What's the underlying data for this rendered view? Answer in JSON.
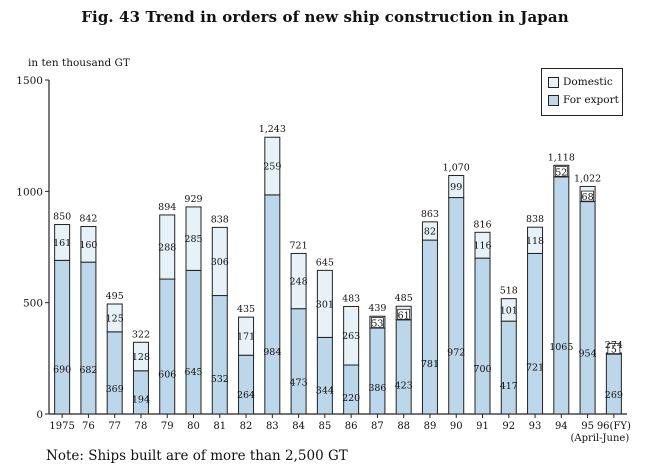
{
  "title": "Fig. 43 Trend in orders of new ship construction in Japan",
  "unit_label": "in ten thousand GT",
  "note": "Note: Ships built are of more than 2,500 GT",
  "colors": {
    "domestic": "#e6f2f8",
    "export": "#bcd6ea",
    "outline": "#222222"
  },
  "chart_data": {
    "type": "bar",
    "stacked": true,
    "categories": [
      "1975",
      "76",
      "77",
      "78",
      "79",
      "80",
      "81",
      "82",
      "83",
      "84",
      "85",
      "86",
      "87",
      "88",
      "89",
      "90",
      "91",
      "92",
      "93",
      "94",
      "95",
      "96(FY)"
    ],
    "category_sublabel": "(April-June)",
    "series": [
      {
        "name": "For export",
        "values": [
          690,
          682,
          369,
          194,
          606,
          645,
          532,
          264,
          984,
          473,
          344,
          220,
          386,
          423,
          781,
          972,
          700,
          417,
          721,
          1065,
          954,
          269
        ]
      },
      {
        "name": "Domestic",
        "values": [
          161,
          160,
          125,
          128,
          288,
          285,
          306,
          171,
          259,
          248,
          301,
          263,
          53,
          61,
          82,
          99,
          116,
          101,
          118,
          52,
          68,
          5
        ]
      }
    ],
    "totals": [
      "850",
      "842",
      "495",
      "322",
      "894",
      "929",
      "838",
      "435",
      "1,243",
      "721",
      "645",
      "483",
      "439",
      "485",
      "863",
      "1,070",
      "816",
      "518",
      "838",
      "1,118",
      "1,022",
      "274"
    ],
    "ylim": [
      0,
      1500
    ],
    "yticks": [
      0,
      500,
      1000,
      1500
    ],
    "legend": [
      "Domestic",
      "For export"
    ],
    "legend_position": "top-right",
    "grid": false
  }
}
